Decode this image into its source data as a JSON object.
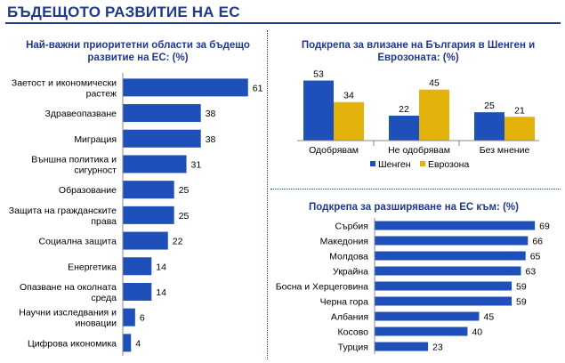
{
  "page": {
    "title": "БЪДЕЩОТО РАЗВИТИЕ НА ЕС"
  },
  "colors": {
    "primary": "#1f3a8a",
    "bar_blue": "#1f4fb8",
    "bar_yellow": "#e3b20b"
  },
  "chart_data": [
    {
      "type": "bar",
      "orientation": "horizontal",
      "title": "Най-важни приоритетни области за бъдещо развитие на ЕС: (%)",
      "categories": [
        "Заетост и икономически растеж",
        "Здравеопазване",
        "Миграция",
        "Външна политика и сигурност",
        "Образование",
        "Защита на гражданските права",
        "Социална защита",
        "Енергетика",
        "Опазване на околната среда",
        "Научни изследвания и иновации",
        "Цифрова икономика"
      ],
      "values": [
        61,
        38,
        38,
        31,
        25,
        25,
        22,
        14,
        14,
        6,
        4
      ],
      "xlim": [
        0,
        65
      ]
    },
    {
      "type": "bar",
      "orientation": "vertical",
      "title": "Подкрепа за влизане на България в Шенген и Еврозоната: (%)",
      "categories": [
        "Одобрявам",
        "Не одобрявам",
        "Без мнение"
      ],
      "series": [
        {
          "name": "Шенген",
          "values": [
            53,
            22,
            25
          ]
        },
        {
          "name": "Еврозона",
          "values": [
            34,
            45,
            21
          ]
        }
      ],
      "ylim": [
        0,
        55
      ],
      "legend": "bottom"
    },
    {
      "type": "bar",
      "orientation": "horizontal",
      "title": "Подкрепа за разширяване на ЕС към: (%)",
      "categories": [
        "Сърбия",
        "Македония",
        "Молдова",
        "Украйна",
        "Босна и Херцеговина",
        "Черна гора",
        "Албания",
        "Косово",
        "Турция"
      ],
      "values": [
        69,
        66,
        65,
        63,
        59,
        59,
        45,
        40,
        23
      ],
      "xlim": [
        0,
        72
      ]
    }
  ]
}
